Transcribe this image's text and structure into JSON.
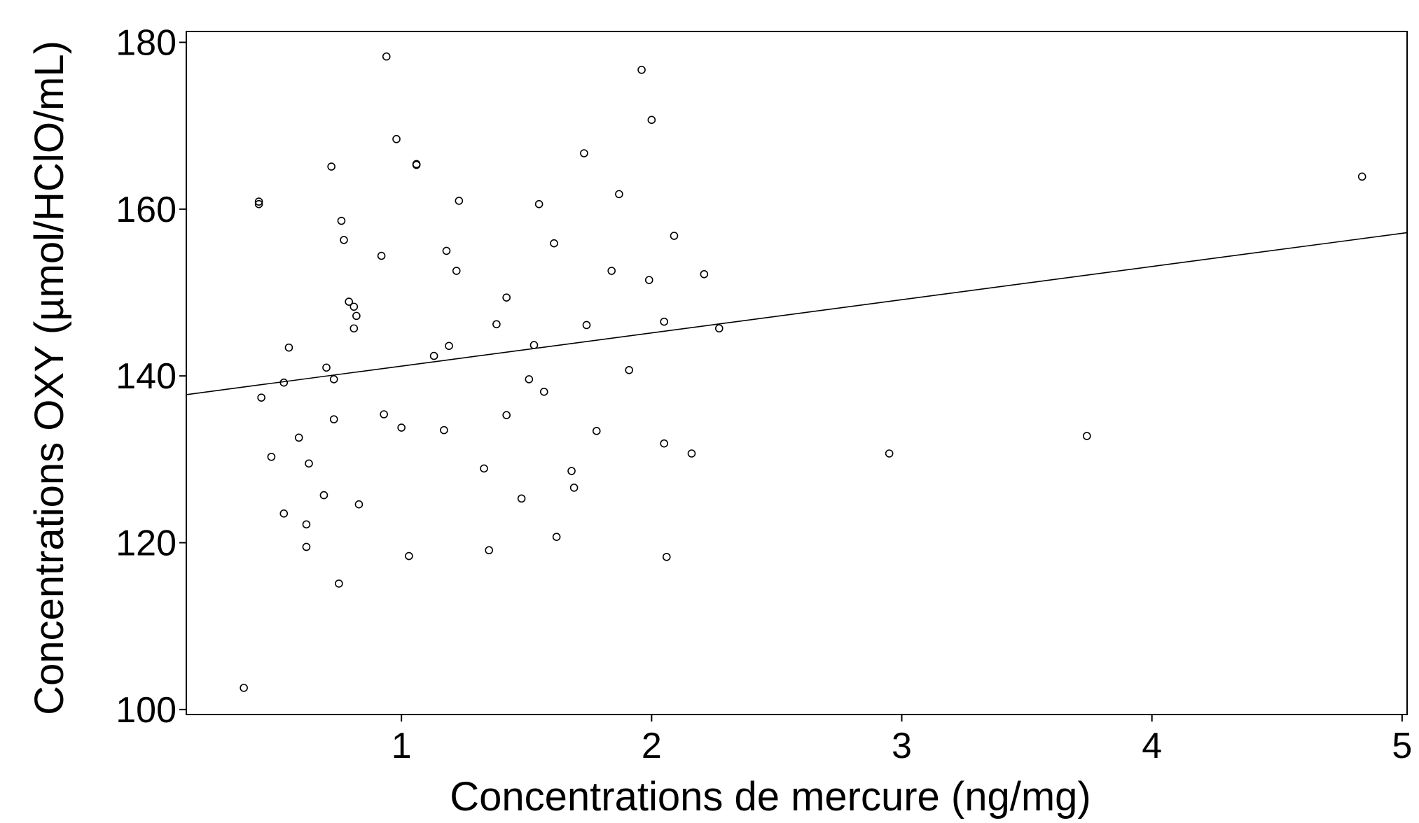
{
  "chart_data": {
    "type": "scatter",
    "title": "",
    "xlabel": "Concentrations de mercure (ng/mg)",
    "ylabel": "Concentrations OXY (µmol/HClO/mL)",
    "xlim": [
      0.14,
      5.02
    ],
    "ylim": [
      99.4,
      181.3
    ],
    "xticks": [
      1,
      2,
      3,
      4,
      5
    ],
    "yticks": [
      100,
      120,
      140,
      160,
      180
    ],
    "grid": false,
    "legend": "none",
    "regression_line": {
      "slope": 3.98,
      "intercept": 137.2
    },
    "points": [
      [
        0.37,
        102.6
      ],
      [
        0.43,
        160.9
      ],
      [
        0.43,
        160.6
      ],
      [
        0.44,
        137.4
      ],
      [
        0.48,
        130.3
      ],
      [
        0.53,
        139.2
      ],
      [
        0.53,
        123.5
      ],
      [
        0.55,
        143.4
      ],
      [
        0.59,
        132.6
      ],
      [
        0.62,
        122.2
      ],
      [
        0.62,
        119.5
      ],
      [
        0.63,
        129.5
      ],
      [
        0.69,
        125.7
      ],
      [
        0.7,
        141.0
      ],
      [
        0.72,
        165.1
      ],
      [
        0.73,
        139.6
      ],
      [
        0.73,
        134.8
      ],
      [
        0.75,
        115.1
      ],
      [
        0.76,
        158.6
      ],
      [
        0.77,
        156.3
      ],
      [
        0.79,
        148.9
      ],
      [
        0.81,
        148.3
      ],
      [
        0.81,
        145.7
      ],
      [
        0.82,
        147.2
      ],
      [
        0.83,
        124.6
      ],
      [
        0.92,
        154.4
      ],
      [
        0.93,
        135.4
      ],
      [
        0.94,
        178.3
      ],
      [
        0.98,
        168.4
      ],
      [
        1.0,
        133.8
      ],
      [
        1.03,
        118.4
      ],
      [
        1.06,
        165.4
      ],
      [
        1.06,
        165.3
      ],
      [
        1.13,
        142.4
      ],
      [
        1.17,
        133.5
      ],
      [
        1.18,
        155.0
      ],
      [
        1.19,
        143.6
      ],
      [
        1.22,
        152.6
      ],
      [
        1.23,
        161.0
      ],
      [
        1.33,
        128.9
      ],
      [
        1.35,
        119.1
      ],
      [
        1.38,
        146.2
      ],
      [
        1.42,
        149.4
      ],
      [
        1.42,
        135.3
      ],
      [
        1.48,
        125.3
      ],
      [
        1.51,
        139.6
      ],
      [
        1.53,
        143.7
      ],
      [
        1.55,
        160.6
      ],
      [
        1.57,
        138.1
      ],
      [
        1.61,
        155.9
      ],
      [
        1.62,
        120.7
      ],
      [
        1.68,
        128.6
      ],
      [
        1.69,
        126.6
      ],
      [
        1.74,
        146.1
      ],
      [
        1.73,
        166.7
      ],
      [
        1.78,
        133.4
      ],
      [
        1.84,
        152.6
      ],
      [
        1.87,
        161.8
      ],
      [
        1.91,
        140.7
      ],
      [
        1.96,
        176.7
      ],
      [
        1.99,
        151.5
      ],
      [
        2.0,
        170.7
      ],
      [
        2.05,
        131.9
      ],
      [
        2.05,
        146.5
      ],
      [
        2.06,
        118.3
      ],
      [
        2.09,
        156.8
      ],
      [
        2.16,
        130.7
      ],
      [
        2.21,
        152.2
      ],
      [
        2.27,
        145.7
      ],
      [
        2.95,
        130.7
      ],
      [
        3.74,
        132.8
      ],
      [
        4.84,
        163.9
      ]
    ]
  }
}
